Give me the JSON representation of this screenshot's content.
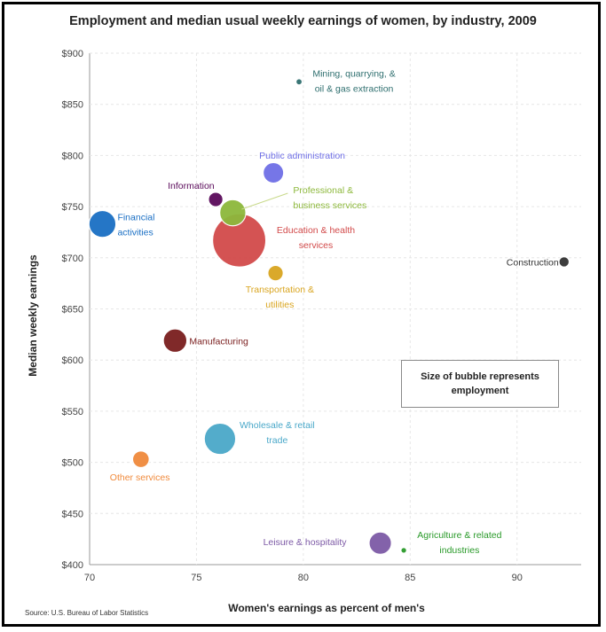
{
  "chart_data": {
    "type": "bubble",
    "title": "Employment and median usual weekly earnings of women, by industry, 2009",
    "xlabel": "Women's earnings as percent of men's",
    "ylabel": "Median weekly earnings",
    "xlim": [
      70,
      93
    ],
    "ylim": [
      400,
      900
    ],
    "xticks": [
      "70",
      "75",
      "80",
      "85",
      "90"
    ],
    "yticks": [
      "$400",
      "$450",
      "$500",
      "$550",
      "$600",
      "$650",
      "$700",
      "$750",
      "$800",
      "$850",
      "$900"
    ],
    "grid": true,
    "note": "Size of bubble represents employment",
    "source": "Source: U.S. Bureau of Labor Statistics",
    "points": [
      {
        "label": "Mining, quarrying, & oil & gas extraction",
        "x": 79.8,
        "y": 872,
        "size": 0.2,
        "color": "#2f6f6f"
      },
      {
        "label": "Public administration",
        "x": 78.6,
        "y": 783,
        "size": 3.2,
        "color": "#6f6fe6"
      },
      {
        "label": "Information",
        "x": 75.9,
        "y": 757,
        "size": 1.6,
        "color": "#5a0a5a"
      },
      {
        "label": "Professional & business services",
        "x": 76.7,
        "y": 744,
        "size": 5.2,
        "color": "#8db83c"
      },
      {
        "label": "Financial activities",
        "x": 70.6,
        "y": 733,
        "size": 5.5,
        "color": "#1a6fc4"
      },
      {
        "label": "Education & health services",
        "x": 77.0,
        "y": 717,
        "size": 21.5,
        "color": "#d24a4a"
      },
      {
        "label": "Construction",
        "x": 92.2,
        "y": 696,
        "size": 0.8,
        "color": "#333333"
      },
      {
        "label": "Transportation & utilities",
        "x": 78.7,
        "y": 685,
        "size": 1.8,
        "color": "#d9a520"
      },
      {
        "label": "Manufacturing",
        "x": 74.0,
        "y": 619,
        "size": 4.2,
        "color": "#7a1e1e"
      },
      {
        "label": "Wholesale & retail trade",
        "x": 76.1,
        "y": 523,
        "size": 7.5,
        "color": "#4aa8c9"
      },
      {
        "label": "Other services",
        "x": 72.4,
        "y": 503,
        "size": 2.1,
        "color": "#f08a3c"
      },
      {
        "label": "Leisure & hospitality",
        "x": 83.6,
        "y": 421,
        "size": 3.8,
        "color": "#7d5aa6"
      },
      {
        "label": "Agriculture & related industries",
        "x": 84.7,
        "y": 414,
        "size": 0.25,
        "color": "#2a9a2a"
      }
    ]
  }
}
